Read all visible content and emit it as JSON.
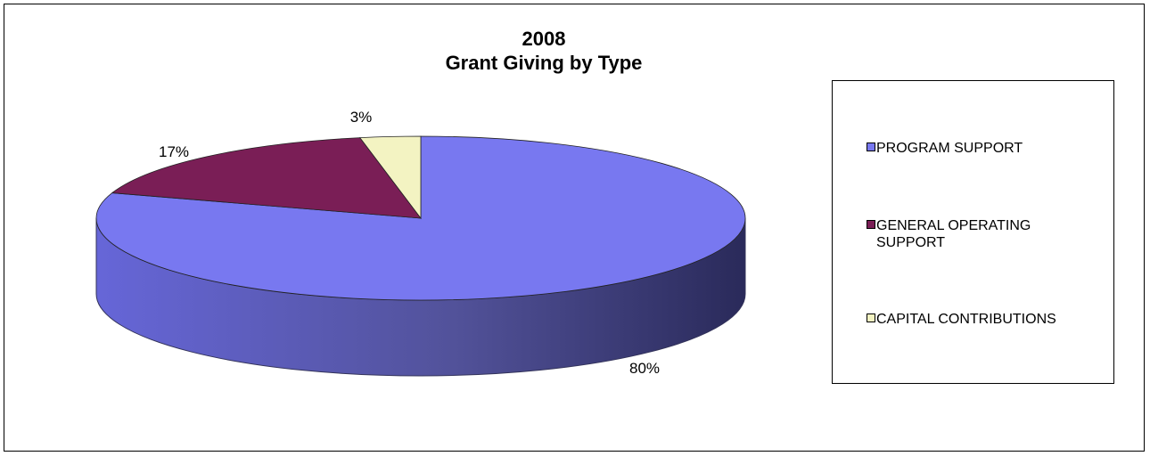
{
  "chart_data": {
    "type": "pie",
    "title": "2008\nGrant Giving by Type",
    "title_lines": [
      "2008",
      "Grant Giving by Type"
    ],
    "slices": [
      {
        "name": "PROGRAM SUPPORT",
        "value": 80,
        "label": "80%",
        "color": "#7878F0"
      },
      {
        "name": "GENERAL OPERATING SUPPORT",
        "value": 17,
        "label": "17%",
        "color": "#7A1E56"
      },
      {
        "name": "CAPITAL CONTRIBUTIONS",
        "value": 3,
        "label": "3%",
        "color": "#F3F3C2"
      }
    ],
    "legend_position": "right",
    "style": "3d-pie"
  },
  "legend": {
    "items": [
      {
        "label": "PROGRAM SUPPORT",
        "color": "#7878F0"
      },
      {
        "label": "GENERAL OPERATING SUPPORT",
        "color": "#7A1E56"
      },
      {
        "label": "CAPITAL CONTRIBUTIONS",
        "color": "#F3F3C2"
      }
    ]
  }
}
